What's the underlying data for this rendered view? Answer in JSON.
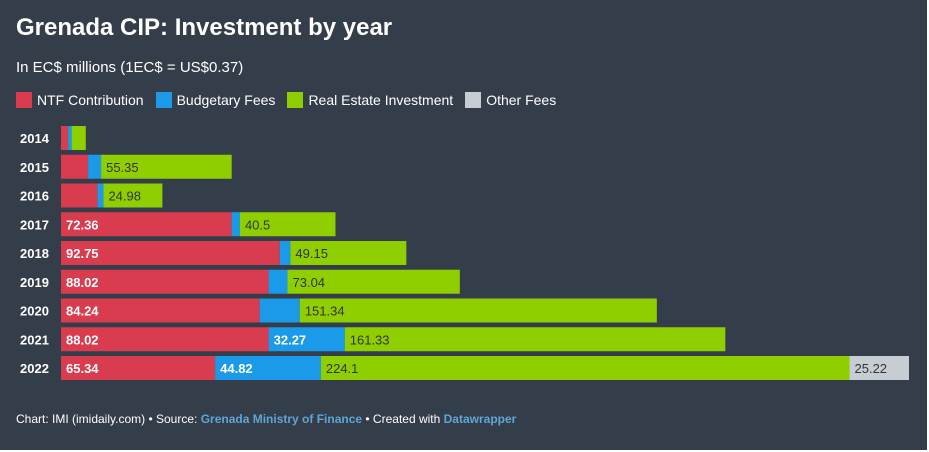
{
  "title": "Grenada CIP: Investment by year",
  "subtitle": "In EC$ millions (1EC$ = US$0.37)",
  "footer": {
    "prefix": "Chart: IMI (imidaily.com) • Source: ",
    "source": "Grenada Ministry of Finance",
    "middle": " • Created with ",
    "tool": "Datawrapper"
  },
  "colors": {
    "background": "#343d4a",
    "ntf": "#d93c4e",
    "budgetary": "#1a9ae8",
    "real_estate": "#8fcf00",
    "other": "#c6cdd3"
  },
  "chart_data": {
    "type": "bar",
    "orientation": "horizontal",
    "stacked": true,
    "categories": [
      "2014",
      "2015",
      "2016",
      "2017",
      "2018",
      "2019",
      "2020",
      "2021",
      "2022"
    ],
    "series": [
      {
        "name": "NTF Contribution",
        "color": "#d93c4e",
        "values": [
          3,
          11.5,
          15.5,
          72.36,
          92.75,
          88.02,
          84.24,
          88.02,
          65.34
        ],
        "labels": [
          "",
          "",
          "",
          "72.36",
          "92.75",
          "88.02",
          "84.24",
          "88.02",
          "65.34"
        ]
      },
      {
        "name": "Budgetary Fees",
        "color": "#1a9ae8",
        "values": [
          1.5,
          5.5,
          2.5,
          3.5,
          4.5,
          8,
          17,
          32.27,
          44.82
        ],
        "labels": [
          "",
          "",
          "",
          "",
          "",
          "",
          "",
          "32.27",
          "44.82"
        ]
      },
      {
        "name": "Real Estate Investment",
        "color": "#8fcf00",
        "values": [
          6,
          55.35,
          24.98,
          40.5,
          49.15,
          73.04,
          151.34,
          161.33,
          224.1
        ],
        "labels": [
          "",
          "55.35",
          "24.98",
          "40.5",
          "49.15",
          "73.04",
          "151.34",
          "161.33",
          "224.1"
        ]
      },
      {
        "name": "Other Fees",
        "color": "#c6cdd3",
        "values": [
          0,
          0,
          0,
          0,
          0,
          0,
          0,
          0,
          25.22
        ],
        "labels": [
          "",
          "",
          "",
          "",
          "",
          "",
          "",
          "",
          "25.22"
        ]
      }
    ],
    "xlim": [
      0,
      359.48
    ]
  }
}
